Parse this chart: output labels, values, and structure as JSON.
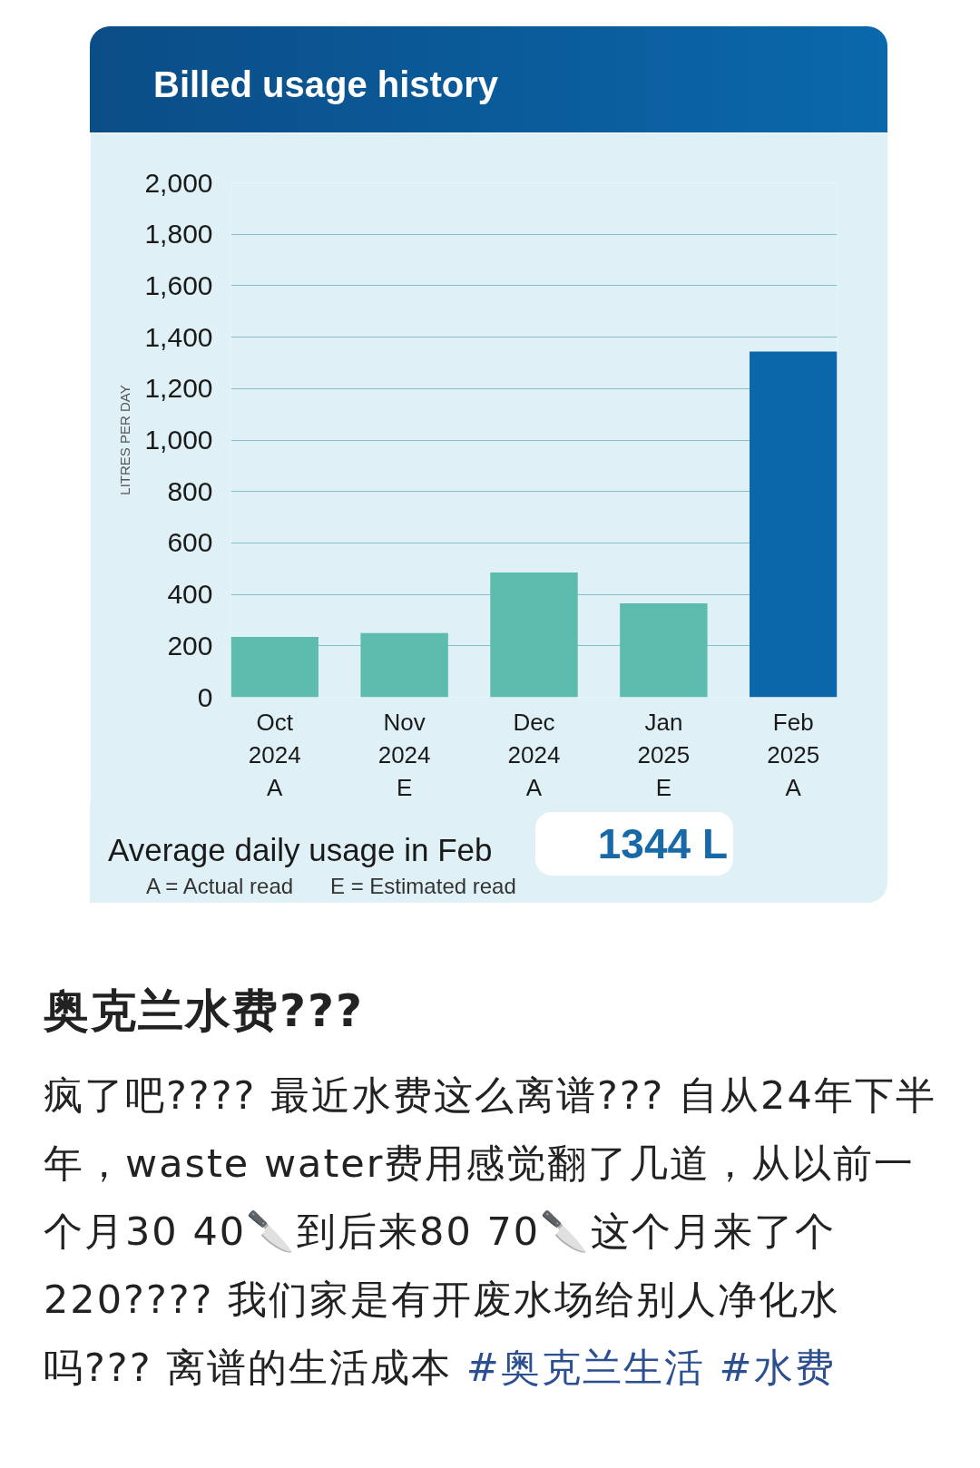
{
  "chart_data": {
    "type": "bar",
    "title": "Billed usage history",
    "ylabel": "LITRES PER DAY",
    "categories": [
      "Oct\n2024\nA",
      "Nov\n2024\nE",
      "Dec\n2024\nA",
      "Jan\n2025\nE",
      "Feb\n2025\nA"
    ],
    "values": [
      235,
      250,
      485,
      365,
      1344
    ],
    "colors": [
      "#5dbcae",
      "#5dbcae",
      "#5dbcae",
      "#5dbcae",
      "#0b66aa"
    ],
    "ylim": [
      0,
      2000
    ],
    "yticks": [
      0,
      200,
      400,
      600,
      800,
      {
        "value": 1000,
        "label": "1,000"
      },
      {
        "value": 1200,
        "label": "1,200"
      },
      {
        "value": 1400,
        "label": "1,400"
      },
      {
        "value": 1600,
        "label": "1,600"
      },
      {
        "value": 1800,
        "label": "1,800"
      },
      {
        "value": 2000,
        "label": "2,000"
      }
    ],
    "grid": "y",
    "annotations": [
      "Average daily usage in Feb",
      "1344 L",
      "A = Actual read",
      "E = Estimated read",
      "奥克兰水费???",
      "疯了吧???? 最近水费这么离谱??? 自从24年下半年，waste water费用感觉翻了几道，从以前一个月30 40🔪到后来80 70🔪这个月来了个220???? 我们家是有开废水场给别人净化水吗??? 离谱的生活成本",
      "#奥克兰生活",
      "#水费"
    ]
  }
}
